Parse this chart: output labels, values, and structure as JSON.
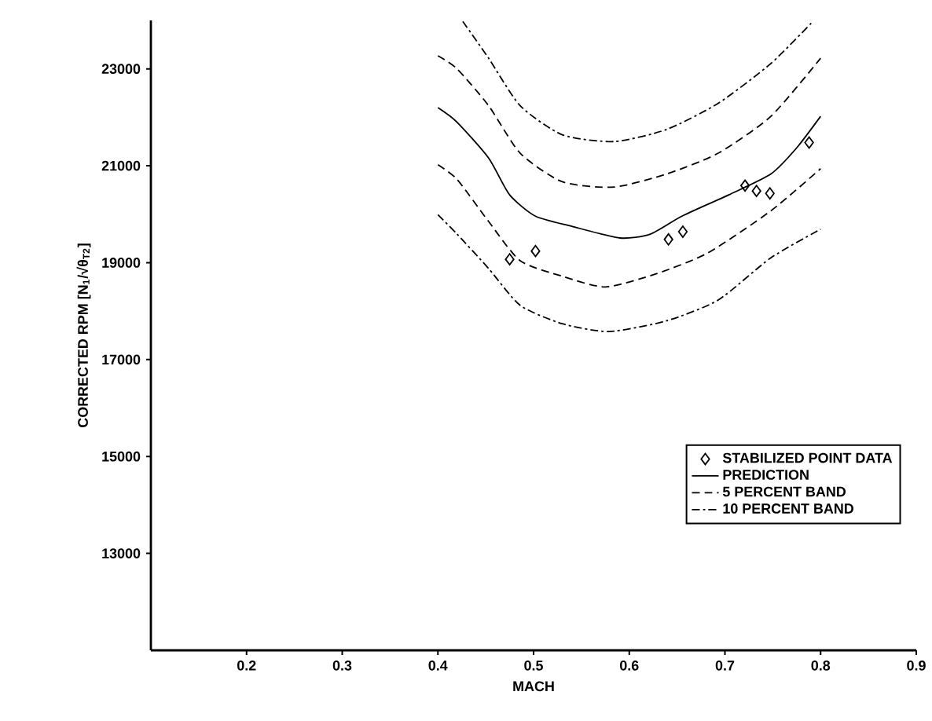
{
  "chart_data": {
    "type": "line",
    "xlabel": "MACH",
    "ylabel": "CORRECTED RPM [N$_{1}$/√θ$_{T2}$]",
    "xlim": [
      0.1,
      0.9
    ],
    "xticks": [
      0.2,
      0.3,
      0.4,
      0.5,
      0.6,
      0.7,
      0.8,
      0.9
    ],
    "ylim": [
      11000,
      24000
    ],
    "yticks": [
      13000,
      15000,
      17000,
      19000,
      21000,
      23000
    ],
    "grid": false,
    "legend": "bottom right",
    "series": [
      {
        "name": "STABILIZED POINT DATA",
        "type": "scatter",
        "marker": "diamond",
        "color": "#000000",
        "x": [
          0.475,
          0.502,
          0.641,
          0.656,
          0.721,
          0.733,
          0.747,
          0.788
        ],
        "values": [
          19070,
          19240,
          19480,
          19640,
          20590,
          20480,
          20430,
          21480
        ]
      },
      {
        "name": "PREDICTION",
        "line_style": "solid",
        "color": "#000000",
        "x": [
          0.4,
          0.42,
          0.453,
          0.475,
          0.502,
          0.54,
          0.59,
          0.622,
          0.655,
          0.704,
          0.748,
          0.775,
          0.8
        ],
        "values": [
          22200,
          21900,
          21160,
          20400,
          19960,
          19750,
          19510,
          19590,
          19960,
          20400,
          20830,
          21370,
          22020
        ]
      },
      {
        "name": "5 PERCENT BAND",
        "line_style": "dashed",
        "color": "#000000",
        "x": [
          0.4,
          0.42,
          0.453,
          0.486,
          0.53,
          0.584,
          0.639,
          0.693,
          0.748,
          0.8
        ],
        "values": [
          23270,
          23000,
          22240,
          21260,
          20670,
          20560,
          20830,
          21260,
          22020,
          23220
        ]
      },
      {
        "line_style": "dashed",
        "color": "#000000",
        "x": [
          0.4,
          0.42,
          0.453,
          0.486,
          0.53,
          0.575,
          0.628,
          0.682,
          0.748,
          0.8
        ],
        "values": [
          21020,
          20720,
          19850,
          19040,
          18720,
          18500,
          18770,
          19200,
          20070,
          20940
        ]
      },
      {
        "name": "10 PERCENT BAND",
        "line_style": "dashdot",
        "color": "#000000",
        "x": [
          0.426,
          0.453,
          0.486,
          0.53,
          0.584,
          0.639,
          0.693,
          0.748,
          0.792
        ],
        "values": [
          23980,
          23220,
          22240,
          21640,
          21500,
          21750,
          22290,
          23110,
          23980
        ]
      },
      {
        "line_style": "dashdot",
        "color": "#000000",
        "x": [
          0.4,
          0.42,
          0.453,
          0.486,
          0.53,
          0.579,
          0.639,
          0.693,
          0.748,
          0.8
        ],
        "values": [
          19990,
          19590,
          18880,
          18120,
          17740,
          17580,
          17800,
          18230,
          19100,
          19690
        ]
      }
    ]
  }
}
